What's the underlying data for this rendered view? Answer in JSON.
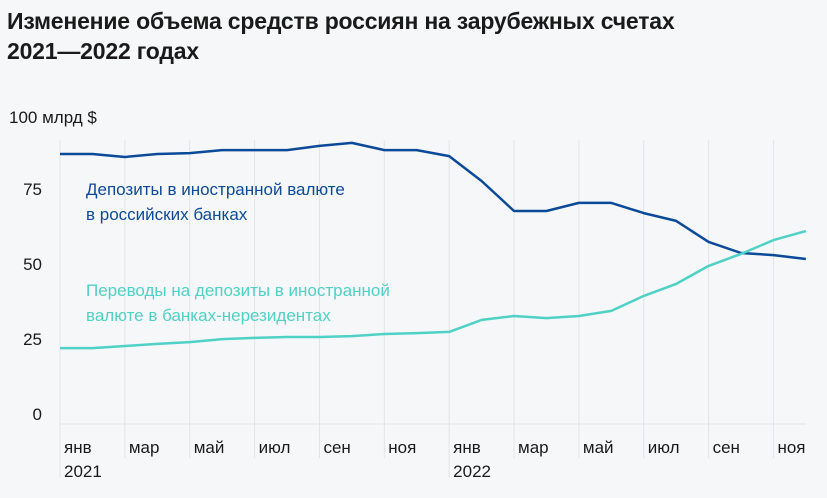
{
  "title_line1": "Изменение объема средств россиян на зарубежных счетах",
  "title_line2": "2021—2022 годах",
  "chart_data": {
    "type": "line",
    "unit_label": "100 млрд $",
    "ylim": [
      0,
      100
    ],
    "y_ticks": [
      "0",
      "25",
      "50",
      "75"
    ],
    "x": [
      "янв 2021",
      "фев 2021",
      "мар 2021",
      "апр 2021",
      "май 2021",
      "июн 2021",
      "июл 2021",
      "авг 2021",
      "сен 2021",
      "окт 2021",
      "ноя 2021",
      "дек 2021",
      "янв 2022",
      "фев 2022",
      "мар 2022",
      "апр 2022",
      "май 2022",
      "июн 2022",
      "июл 2022",
      "авг 2022",
      "сен 2022",
      "окт 2022",
      "ноя 2022",
      "дек 2022"
    ],
    "x_tick_labels": [
      {
        "month": "янв",
        "year": "2021"
      },
      {
        "month": "мар"
      },
      {
        "month": "май"
      },
      {
        "month": "июл"
      },
      {
        "month": "сен"
      },
      {
        "month": "ноя"
      },
      {
        "month": "янв",
        "year": "2022"
      },
      {
        "month": "мар"
      },
      {
        "month": "май"
      },
      {
        "month": "июл"
      },
      {
        "month": "сен"
      },
      {
        "month": "ноя"
      }
    ],
    "grid": "vertical",
    "series": [
      {
        "name_line1": "Депозиты в иностранной валюте",
        "name_line2": "в российских банках",
        "color": "#0b4a99",
        "values": [
          90,
          90,
          89,
          90,
          90.3,
          91.3,
          91.3,
          91.3,
          92.7,
          93.7,
          91.3,
          91.3,
          89.3,
          81,
          71,
          71,
          73.7,
          73.7,
          70.3,
          67.7,
          60.7,
          57,
          56.3,
          55
        ]
      },
      {
        "name_line1": "Переводы на депозиты в иностранной",
        "name_line2": "валюте в банках-нерезидентах",
        "color": "#4fd1c5",
        "values": [
          25.3,
          25.3,
          26,
          26.7,
          27.3,
          28.3,
          28.7,
          29,
          29,
          29.3,
          30,
          30.3,
          30.7,
          34.7,
          36,
          35.3,
          36,
          37.7,
          42.7,
          46.7,
          52.7,
          56.7,
          61.3,
          64.3
        ]
      }
    ]
  }
}
